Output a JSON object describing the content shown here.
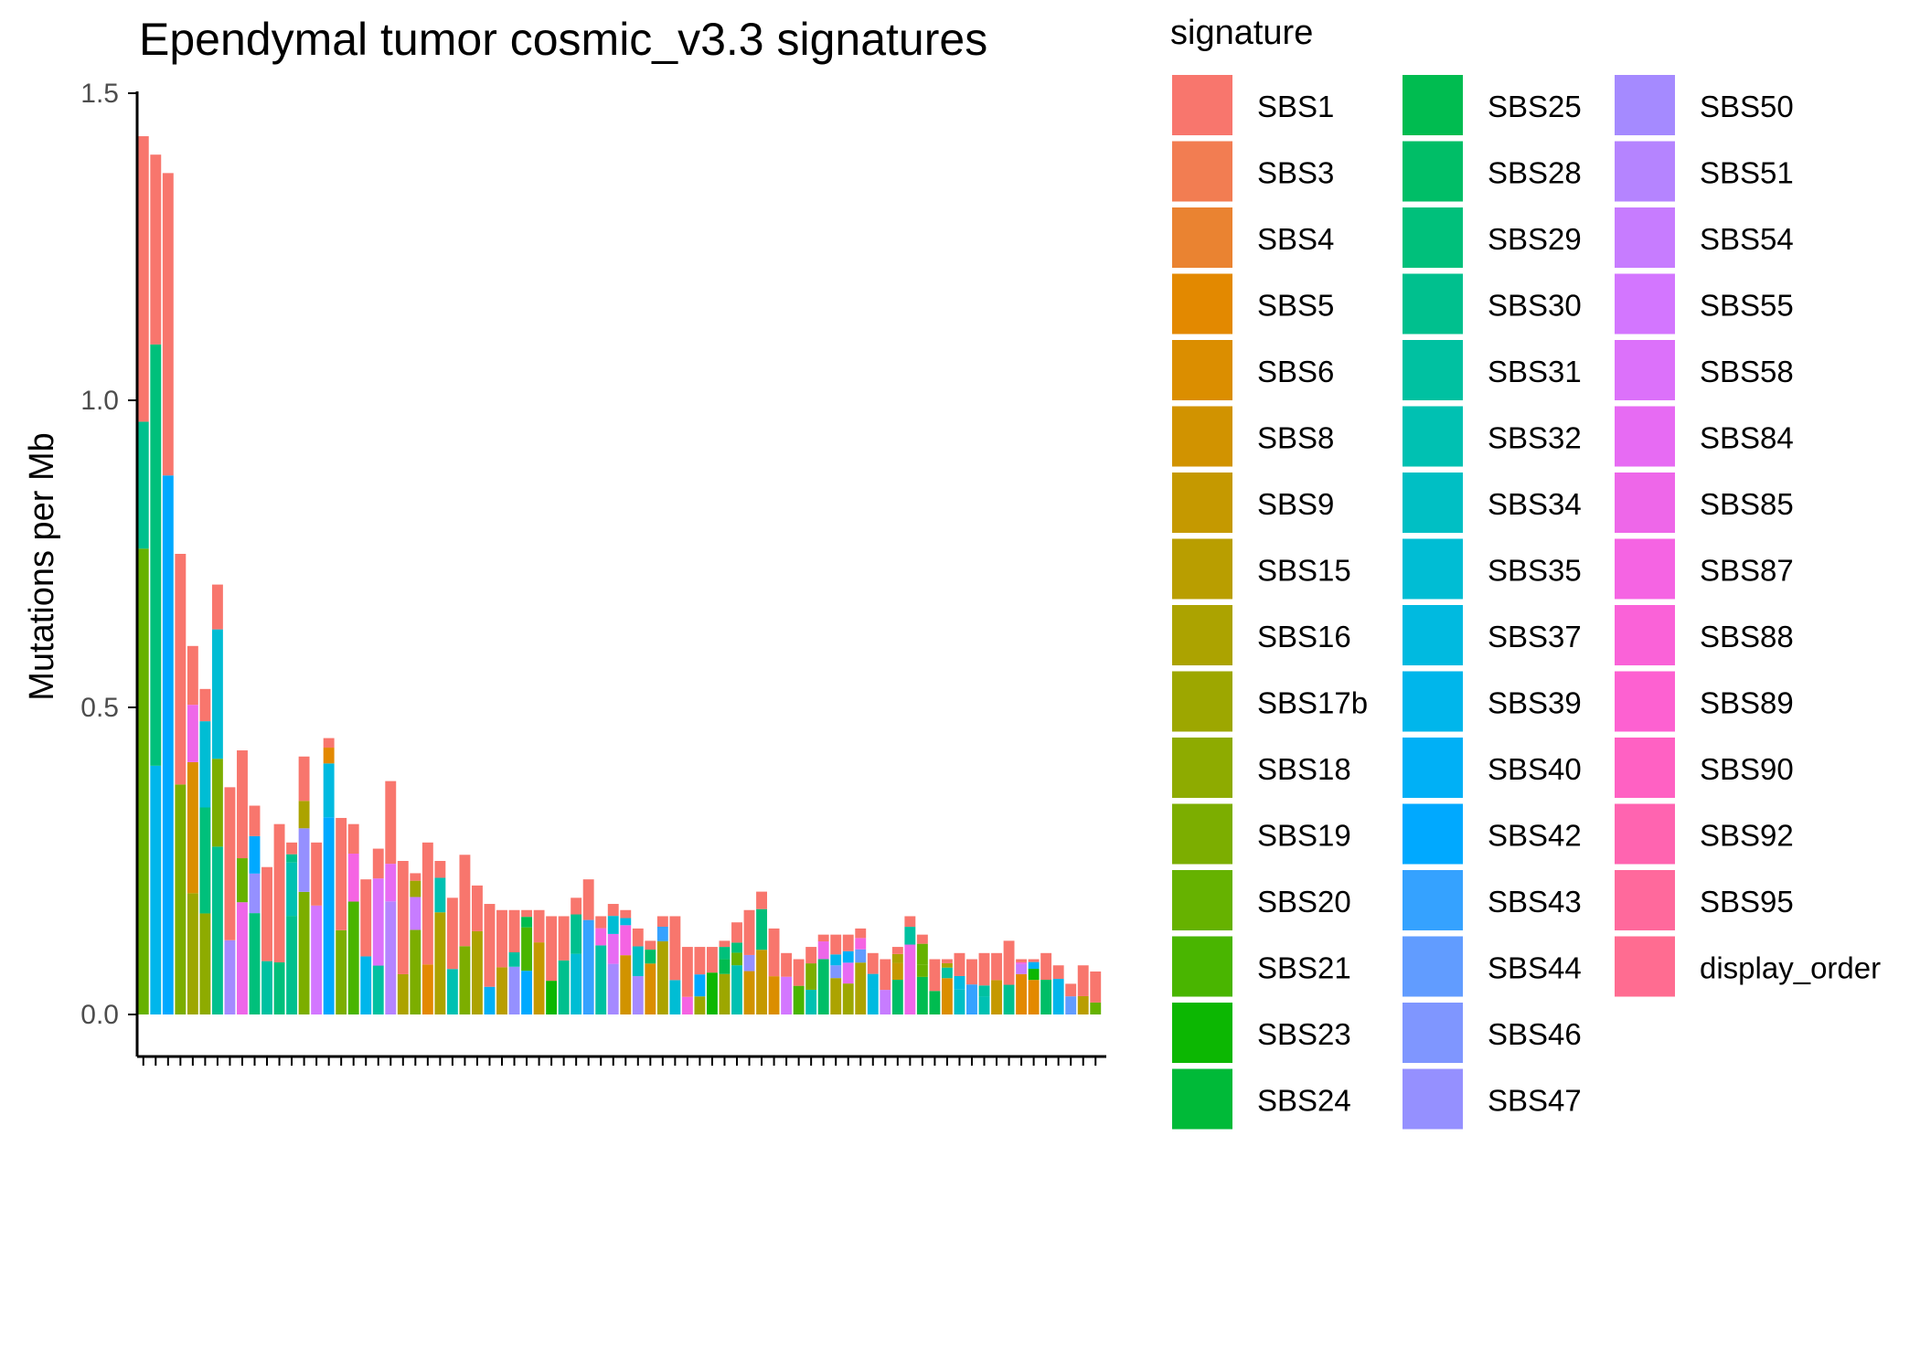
{
  "chart_data": {
    "type": "bar",
    "title": "Ependymal tumor cosmic_v3.3 signatures",
    "ylabel": "Mutations per Mb",
    "ylim": [
      0,
      1.5
    ],
    "yticks": [
      "0.0",
      "0.5",
      "1.0",
      "1.5"
    ],
    "legend": {
      "title": "signature",
      "placement": "right",
      "entries": [
        {
          "name": "SBS1",
          "color": "#F8766D"
        },
        {
          "name": "SBS3",
          "color": "#F27D52"
        },
        {
          "name": "SBS4",
          "color": "#EA8331"
        },
        {
          "name": "SBS5",
          "color": "#E38900"
        },
        {
          "name": "SBS6",
          "color": "#DB8E00"
        },
        {
          "name": "SBS8",
          "color": "#D19300"
        },
        {
          "name": "SBS9",
          "color": "#C59900"
        },
        {
          "name": "SBS15",
          "color": "#B99E00"
        },
        {
          "name": "SBS16",
          "color": "#ACA300"
        },
        {
          "name": "SBS17b",
          "color": "#9DA700"
        },
        {
          "name": "SBS18",
          "color": "#8EAB00"
        },
        {
          "name": "SBS19",
          "color": "#7CAE00"
        },
        {
          "name": "SBS20",
          "color": "#66B200"
        },
        {
          "name": "SBS21",
          "color": "#49B500"
        },
        {
          "name": "SBS23",
          "color": "#0CB702"
        },
        {
          "name": "SBS24",
          "color": "#00BA38"
        },
        {
          "name": "SBS25",
          "color": "#00BC50"
        },
        {
          "name": "SBS28",
          "color": "#00BE67"
        },
        {
          "name": "SBS29",
          "color": "#00C07B"
        },
        {
          "name": "SBS30",
          "color": "#00C08E"
        },
        {
          "name": "SBS31",
          "color": "#00C1A1"
        },
        {
          "name": "SBS32",
          "color": "#00C1B2"
        },
        {
          "name": "SBS34",
          "color": "#00BFC4"
        },
        {
          "name": "SBS35",
          "color": "#00BDD4"
        },
        {
          "name": "SBS37",
          "color": "#00BAE0"
        },
        {
          "name": "SBS39",
          "color": "#00B6EB"
        },
        {
          "name": "SBS40",
          "color": "#00B0F6"
        },
        {
          "name": "SBS42",
          "color": "#00A9FF"
        },
        {
          "name": "SBS43",
          "color": "#35A2FF"
        },
        {
          "name": "SBS44",
          "color": "#619CFF"
        },
        {
          "name": "SBS46",
          "color": "#7F96FF"
        },
        {
          "name": "SBS47",
          "color": "#9590FF"
        },
        {
          "name": "SBS50",
          "color": "#A58AFF"
        },
        {
          "name": "SBS51",
          "color": "#B584FF"
        },
        {
          "name": "SBS54",
          "color": "#C77CFF"
        },
        {
          "name": "SBS55",
          "color": "#D376FF"
        },
        {
          "name": "SBS58",
          "color": "#DC71FA"
        },
        {
          "name": "SBS84",
          "color": "#E76BF3"
        },
        {
          "name": "SBS85",
          "color": "#EE67E9"
        },
        {
          "name": "SBS87",
          "color": "#F564E3"
        },
        {
          "name": "SBS88",
          "color": "#FA62D8"
        },
        {
          "name": "SBS89",
          "color": "#FD61D1"
        },
        {
          "name": "SBS90",
          "color": "#FF61C3"
        },
        {
          "name": "SBS92",
          "color": "#FF64B0"
        },
        {
          "name": "SBS95",
          "color": "#FF699C"
        },
        {
          "name": "display_order",
          "color": "#FF6C91"
        }
      ]
    },
    "values": [
      1.43,
      1.4,
      1.37,
      0.75,
      0.6,
      0.53,
      0.7,
      0.37,
      0.43,
      0.34,
      0.24,
      0.31,
      0.28,
      0.42,
      0.28,
      0.45,
      0.32,
      0.31,
      0.22,
      0.27,
      0.38,
      0.25,
      0.23,
      0.28,
      0.25,
      0.19,
      0.26,
      0.21,
      0.18,
      0.17,
      0.17,
      0.17,
      0.17,
      0.16,
      0.16,
      0.19,
      0.22,
      0.16,
      0.18,
      0.17,
      0.14,
      0.12,
      0.16,
      0.16,
      0.11,
      0.11,
      0.11,
      0.12,
      0.15,
      0.17,
      0.2,
      0.14,
      0.1,
      0.09,
      0.11,
      0.13,
      0.13,
      0.13,
      0.14,
      0.1,
      0.09,
      0.11,
      0.16,
      0.13,
      0.09,
      0.09,
      0.1,
      0.09,
      0.1,
      0.1,
      0.12,
      0.09,
      0.09,
      0.1,
      0.08,
      0.05,
      0.08,
      0.07
    ],
    "grid": false
  }
}
